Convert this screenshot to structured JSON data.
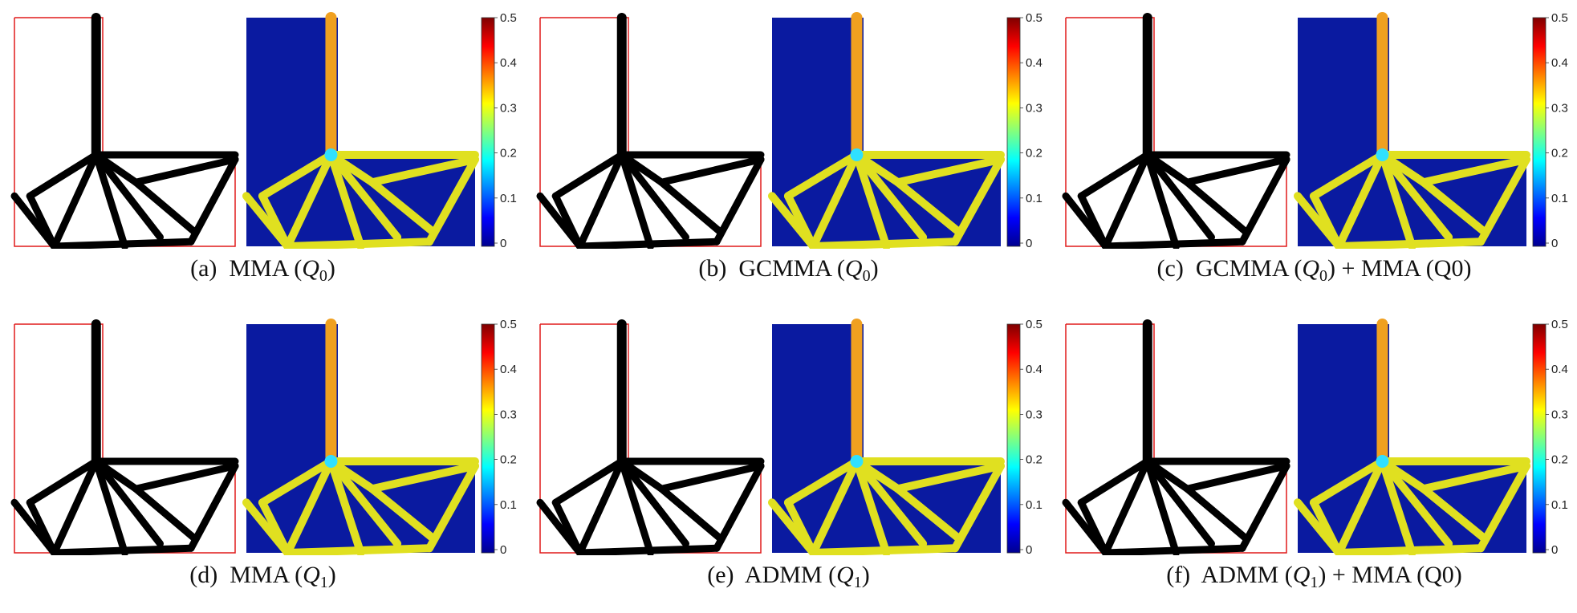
{
  "figure": {
    "colorbar": {
      "ticks": [
        "0.5",
        "0.4",
        "0.3",
        "0.2",
        "0.1",
        "0"
      ],
      "colors": [
        "#7f0000",
        "#ff0000",
        "#ff8000",
        "#ffff00",
        "#80ff80",
        "#00ffff",
        "#0080ff",
        "#0000ff",
        "#00008f"
      ]
    },
    "colors": {
      "frame": "#e01a1a",
      "solid": "#000000",
      "void_field": "#0a1aa0",
      "stress_high": "#f0a020",
      "stress_mid": "#e0e020",
      "stress_hot": "#30e0ff"
    },
    "panels": [
      {
        "tag": "(a)",
        "method": "MMA (",
        "symbol": "Q",
        "sub": "0",
        "suffix": ")",
        "extra": ""
      },
      {
        "tag": "(b)",
        "method": "GCMMA (",
        "symbol": "Q",
        "sub": "0",
        "suffix": ")",
        "extra": ""
      },
      {
        "tag": "(c)",
        "method": "GCMMA (",
        "symbol": "Q",
        "sub": "0",
        "suffix": ")",
        "extra": " + MMA (Q0)"
      },
      {
        "tag": "(d)",
        "method": "MMA (",
        "symbol": "Q",
        "sub": "1",
        "suffix": ")",
        "extra": ""
      },
      {
        "tag": "(e)",
        "method": "ADMM (",
        "symbol": "Q",
        "sub": "1",
        "suffix": ")",
        "extra": ""
      },
      {
        "tag": "(f)",
        "method": "ADMM (",
        "symbol": "Q",
        "sub": "1",
        "suffix": ")",
        "extra": " + MMA (Q0)"
      }
    ]
  }
}
